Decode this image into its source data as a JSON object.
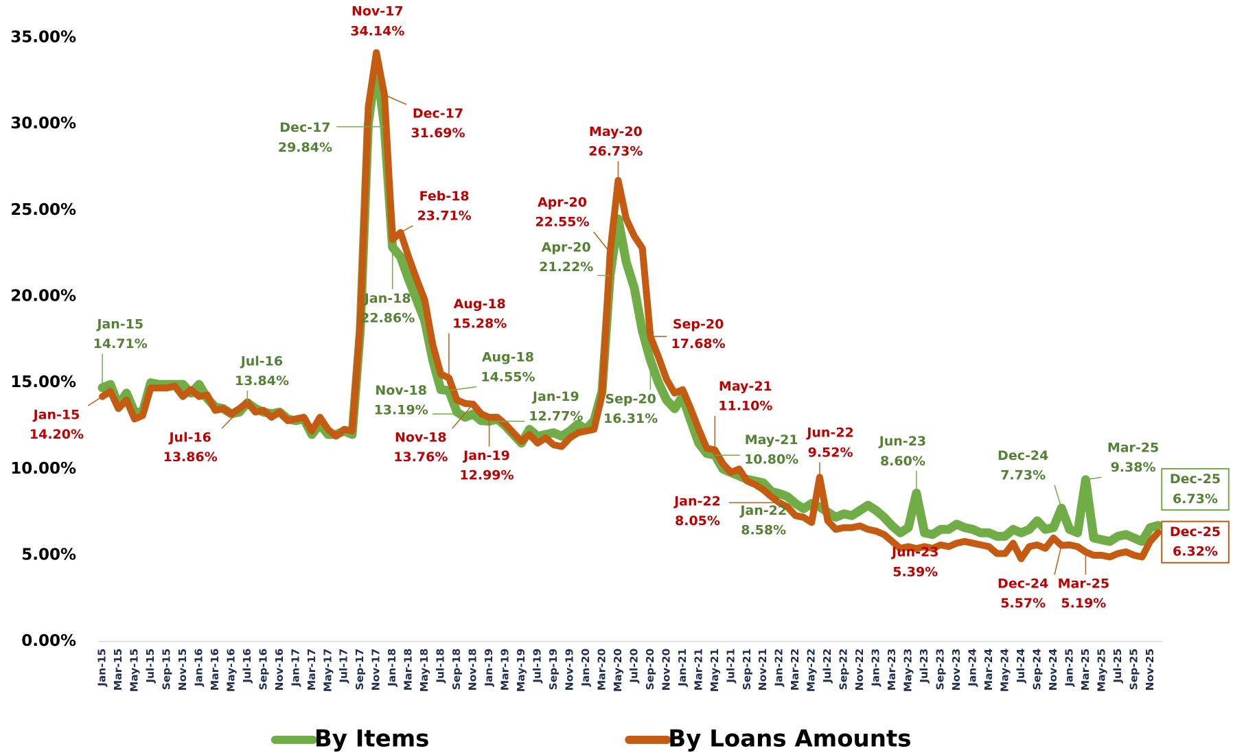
{
  "chart_data": {
    "type": "line",
    "categories": [
      "Jan-15",
      null,
      "Mar-15",
      null,
      "May-15",
      null,
      "Jul-15",
      null,
      "Sep-15",
      null,
      "Nov-15",
      null,
      "Jan-16",
      null,
      "Mar-16",
      null,
      "May-16",
      null,
      "Jul-16",
      null,
      "Sep-16",
      null,
      "Nov-16",
      null,
      "Jan-17",
      null,
      "Mar-17",
      null,
      "May-17",
      null,
      "Jul-17",
      null,
      "Sep-17",
      null,
      "Nov-17",
      null,
      "Jan-18",
      null,
      "Mar-18",
      null,
      "May-18",
      null,
      "Jul-18",
      null,
      "Sep-18",
      null,
      "Nov-18",
      null,
      "Jan-19",
      null,
      "Mar-19",
      null,
      "May-19",
      null,
      "Jul-19",
      null,
      "Sep-19",
      null,
      "Nov-19",
      null,
      "Jan-20",
      null,
      "Mar-20",
      null,
      "May-20",
      null,
      "Jul-20",
      null,
      "Sep-20",
      null,
      "Nov-20",
      null,
      "Jan-21",
      null,
      "Mar-21",
      null,
      "May-21",
      null,
      "Jul-21",
      null,
      "Sep-21",
      null,
      "Nov-21",
      null,
      "Jan-22",
      null,
      "Mar-22",
      null,
      "May-22",
      null,
      "Jul-22",
      null,
      "Sep-22",
      null,
      "Nov-22",
      null,
      "Jan-23",
      null,
      "Mar-23",
      null,
      "May-23",
      null,
      "Jul-23",
      null,
      "Sep-23",
      null,
      "Nov-23",
      null,
      "Jan-24",
      null,
      "Mar-24",
      null,
      "May-24",
      null,
      "Jul-24",
      null,
      "Sep-24",
      null,
      "Nov-24",
      null,
      "Jan-25",
      null,
      "Mar-25",
      null,
      "May-25",
      null,
      "Jul-25",
      null,
      "Sep-25",
      null,
      "Nov-25",
      null
    ],
    "series": [
      {
        "name": "By Items",
        "color": "#70ad47",
        "label_color": "#548235",
        "values": [
          14.71,
          14.9,
          13.7,
          14.4,
          13.3,
          13.3,
          15.0,
          14.9,
          14.9,
          14.9,
          14.9,
          14.4,
          14.9,
          14.1,
          13.6,
          13.5,
          13.2,
          13.3,
          13.84,
          13.5,
          13.3,
          13.2,
          13.3,
          12.9,
          12.8,
          12.9,
          12.0,
          12.6,
          12.0,
          12.0,
          12.2,
          12.0,
          18.0,
          30.0,
          33.5,
          29.84,
          22.86,
          22.3,
          21.0,
          19.8,
          18.6,
          16.3,
          14.6,
          14.55,
          13.3,
          13.0,
          13.19,
          12.8,
          12.77,
          12.9,
          12.5,
          12.0,
          11.5,
          12.3,
          11.9,
          12.0,
          12.1,
          11.9,
          12.2,
          12.6,
          12.3,
          12.8,
          14.5,
          21.22,
          24.5,
          22.0,
          20.5,
          18.0,
          16.31,
          15.0,
          14.0,
          13.5,
          14.2,
          12.8,
          11.5,
          10.9,
          10.8,
          10.0,
          9.8,
          9.6,
          9.4,
          9.3,
          9.2,
          8.7,
          8.58,
          8.4,
          8.0,
          7.7,
          8.0,
          7.8,
          7.5,
          7.2,
          7.4,
          7.3,
          7.6,
          7.9,
          7.6,
          7.2,
          6.7,
          6.3,
          6.6,
          8.6,
          6.3,
          6.2,
          6.5,
          6.5,
          6.8,
          6.6,
          6.5,
          6.3,
          6.3,
          6.1,
          6.1,
          6.5,
          6.3,
          6.5,
          7.0,
          6.5,
          6.6,
          7.73,
          6.5,
          6.3,
          9.38,
          6.0,
          5.9,
          5.8,
          6.1,
          6.2,
          6.0,
          5.8,
          6.6,
          6.73
        ],
        "point_labels": [
          "Jan-15",
          null,
          null,
          null,
          null,
          null,
          null,
          null,
          null,
          null,
          null,
          null,
          null,
          null,
          null,
          null,
          null,
          null,
          "Jul-16",
          null,
          null,
          null,
          null,
          null,
          null,
          null,
          null,
          null,
          null,
          null,
          null,
          null,
          null,
          null,
          null,
          "Dec-17",
          "Jan-18",
          null,
          null,
          null,
          null,
          null,
          null,
          "Aug-18",
          null,
          null,
          "Nov-18",
          null,
          "Jan-19",
          null,
          null,
          null,
          null,
          null,
          null,
          null,
          null,
          null,
          null,
          null,
          null,
          null,
          null,
          "Apr-20",
          null,
          null,
          null,
          null,
          "Sep-20",
          null,
          null,
          null,
          null,
          null,
          null,
          null,
          "May-21",
          null,
          null,
          null,
          null,
          null,
          null,
          null,
          "Jan-22",
          null,
          null,
          null,
          null,
          null,
          null,
          null,
          null,
          null,
          null,
          null,
          null,
          null,
          null,
          null,
          null,
          "Jun-23",
          null,
          null,
          null,
          null,
          null,
          null,
          null,
          null,
          null,
          null,
          null,
          null,
          null,
          null,
          null,
          null,
          null,
          "Dec-24",
          null,
          null,
          "Mar-25",
          null,
          null,
          null,
          null,
          null,
          null,
          null,
          null,
          "Dec-25"
        ],
        "value_labels": [
          "14.71%",
          null,
          null,
          null,
          null,
          null,
          null,
          null,
          null,
          null,
          null,
          null,
          null,
          null,
          null,
          null,
          null,
          null,
          "13.84%",
          null,
          null,
          null,
          null,
          null,
          null,
          null,
          null,
          null,
          null,
          null,
          null,
          null,
          null,
          null,
          null,
          "29.84%",
          "22.86%",
          null,
          null,
          null,
          null,
          null,
          null,
          "14.55%",
          null,
          null,
          "13.19%",
          null,
          "12.77%",
          null,
          null,
          null,
          null,
          null,
          null,
          null,
          null,
          null,
          null,
          null,
          null,
          null,
          null,
          "21.22%",
          null,
          null,
          null,
          null,
          "16.31%",
          null,
          null,
          null,
          null,
          null,
          null,
          null,
          "10.80%",
          null,
          null,
          null,
          null,
          null,
          null,
          null,
          "8.58%",
          null,
          null,
          null,
          null,
          null,
          null,
          null,
          null,
          null,
          null,
          null,
          null,
          null,
          null,
          null,
          null,
          "8.60%",
          null,
          null,
          null,
          null,
          null,
          null,
          null,
          null,
          null,
          null,
          null,
          null,
          null,
          null,
          null,
          null,
          null,
          "7.73%",
          null,
          null,
          "9.38%",
          null,
          null,
          null,
          null,
          null,
          null,
          null,
          null,
          "6.73%"
        ]
      },
      {
        "name": "By Loans Amounts",
        "color": "#c55a11",
        "label_color": "#c00000",
        "values": [
          14.2,
          14.5,
          13.5,
          14.0,
          12.9,
          13.1,
          14.7,
          14.7,
          14.7,
          14.8,
          14.2,
          14.6,
          14.2,
          14.3,
          13.4,
          13.5,
          13.2,
          13.5,
          13.86,
          13.3,
          13.4,
          13.0,
          13.3,
          12.8,
          12.9,
          13.0,
          12.2,
          13.0,
          12.3,
          11.9,
          12.3,
          12.2,
          18.5,
          31.0,
          34.14,
          31.69,
          23.3,
          23.71,
          22.3,
          21.0,
          19.8,
          17.2,
          15.5,
          15.28,
          14.0,
          13.8,
          13.76,
          13.2,
          12.99,
          13.0,
          12.6,
          12.1,
          11.6,
          12.0,
          11.5,
          11.8,
          11.4,
          11.3,
          11.8,
          12.1,
          12.2,
          12.3,
          14.3,
          22.55,
          26.73,
          24.5,
          23.5,
          22.8,
          17.68,
          16.5,
          15.2,
          14.4,
          14.6,
          13.5,
          12.3,
          11.2,
          11.1,
          10.3,
          9.8,
          10.0,
          9.3,
          9.1,
          8.8,
          8.4,
          8.05,
          7.8,
          7.3,
          7.2,
          6.9,
          9.52,
          7.0,
          6.5,
          6.6,
          6.6,
          6.7,
          6.5,
          6.4,
          6.2,
          5.8,
          5.4,
          5.5,
          5.39,
          5.5,
          5.4,
          5.6,
          5.5,
          5.7,
          5.8,
          5.7,
          5.6,
          5.5,
          5.1,
          5.1,
          5.7,
          4.8,
          5.5,
          5.6,
          5.4,
          6.0,
          5.57,
          5.6,
          5.5,
          5.19,
          5.0,
          5.0,
          4.9,
          5.1,
          5.2,
          5.0,
          4.9,
          5.8,
          6.32
        ],
        "point_labels": [
          "Jan-15",
          null,
          null,
          null,
          null,
          null,
          null,
          null,
          null,
          null,
          null,
          null,
          null,
          null,
          null,
          null,
          null,
          null,
          "Jul-16",
          null,
          null,
          null,
          null,
          null,
          null,
          null,
          null,
          null,
          null,
          null,
          null,
          null,
          null,
          null,
          "Nov-17",
          "Dec-17",
          null,
          "Feb-18",
          null,
          null,
          null,
          null,
          null,
          "Aug-18",
          null,
          null,
          "Nov-18",
          null,
          "Jan-19",
          null,
          null,
          null,
          null,
          null,
          null,
          null,
          null,
          null,
          null,
          null,
          null,
          null,
          null,
          "Apr-20",
          "May-20",
          null,
          null,
          null,
          "Sep-20",
          null,
          null,
          null,
          null,
          null,
          null,
          null,
          "May-21",
          null,
          null,
          null,
          null,
          null,
          null,
          null,
          "Jan-22",
          null,
          null,
          null,
          null,
          "Jun-22",
          null,
          null,
          null,
          null,
          null,
          null,
          null,
          null,
          null,
          null,
          null,
          "Jun-23",
          null,
          null,
          null,
          null,
          null,
          null,
          null,
          null,
          null,
          null,
          null,
          null,
          null,
          null,
          null,
          null,
          null,
          "Dec-24",
          null,
          null,
          "Mar-25",
          null,
          null,
          null,
          null,
          null,
          null,
          null,
          null,
          "Dec-25"
        ],
        "value_labels": [
          "14.20%",
          null,
          null,
          null,
          null,
          null,
          null,
          null,
          null,
          null,
          null,
          null,
          null,
          null,
          null,
          null,
          null,
          null,
          "13.86%",
          null,
          null,
          null,
          null,
          null,
          null,
          null,
          null,
          null,
          null,
          null,
          null,
          null,
          null,
          null,
          "34.14%",
          "31.69%",
          null,
          "23.71%",
          null,
          null,
          null,
          null,
          null,
          "15.28%",
          null,
          null,
          "13.76%",
          null,
          "12.99%",
          null,
          null,
          null,
          null,
          null,
          null,
          null,
          null,
          null,
          null,
          null,
          null,
          null,
          null,
          "22.55%",
          "26.73%",
          null,
          null,
          null,
          "17.68%",
          null,
          null,
          null,
          null,
          null,
          null,
          null,
          "11.10%",
          null,
          null,
          null,
          null,
          null,
          null,
          null,
          "8.05%",
          null,
          null,
          null,
          null,
          "9.52%",
          null,
          null,
          null,
          null,
          null,
          null,
          null,
          null,
          null,
          null,
          null,
          "5.39%",
          null,
          null,
          null,
          null,
          null,
          null,
          null,
          null,
          null,
          null,
          null,
          null,
          null,
          null,
          null,
          null,
          null,
          "5.57%",
          null,
          null,
          "5.19%",
          null,
          null,
          null,
          null,
          null,
          null,
          null,
          null,
          "6.32%"
        ]
      }
    ],
    "ylim": [
      0,
      35
    ],
    "yticks": [
      {
        "value": 0,
        "label": "0.00%"
      },
      {
        "value": 5,
        "label": "5.00%"
      },
      {
        "value": 10,
        "label": "10.00%"
      },
      {
        "value": 15,
        "label": "15.00%"
      },
      {
        "value": 20,
        "label": "20.00%"
      },
      {
        "value": 25,
        "label": "25.00%"
      },
      {
        "value": 30,
        "label": "30.00%"
      },
      {
        "value": 35,
        "label": "35.00%"
      }
    ],
    "legend": "bottom"
  }
}
